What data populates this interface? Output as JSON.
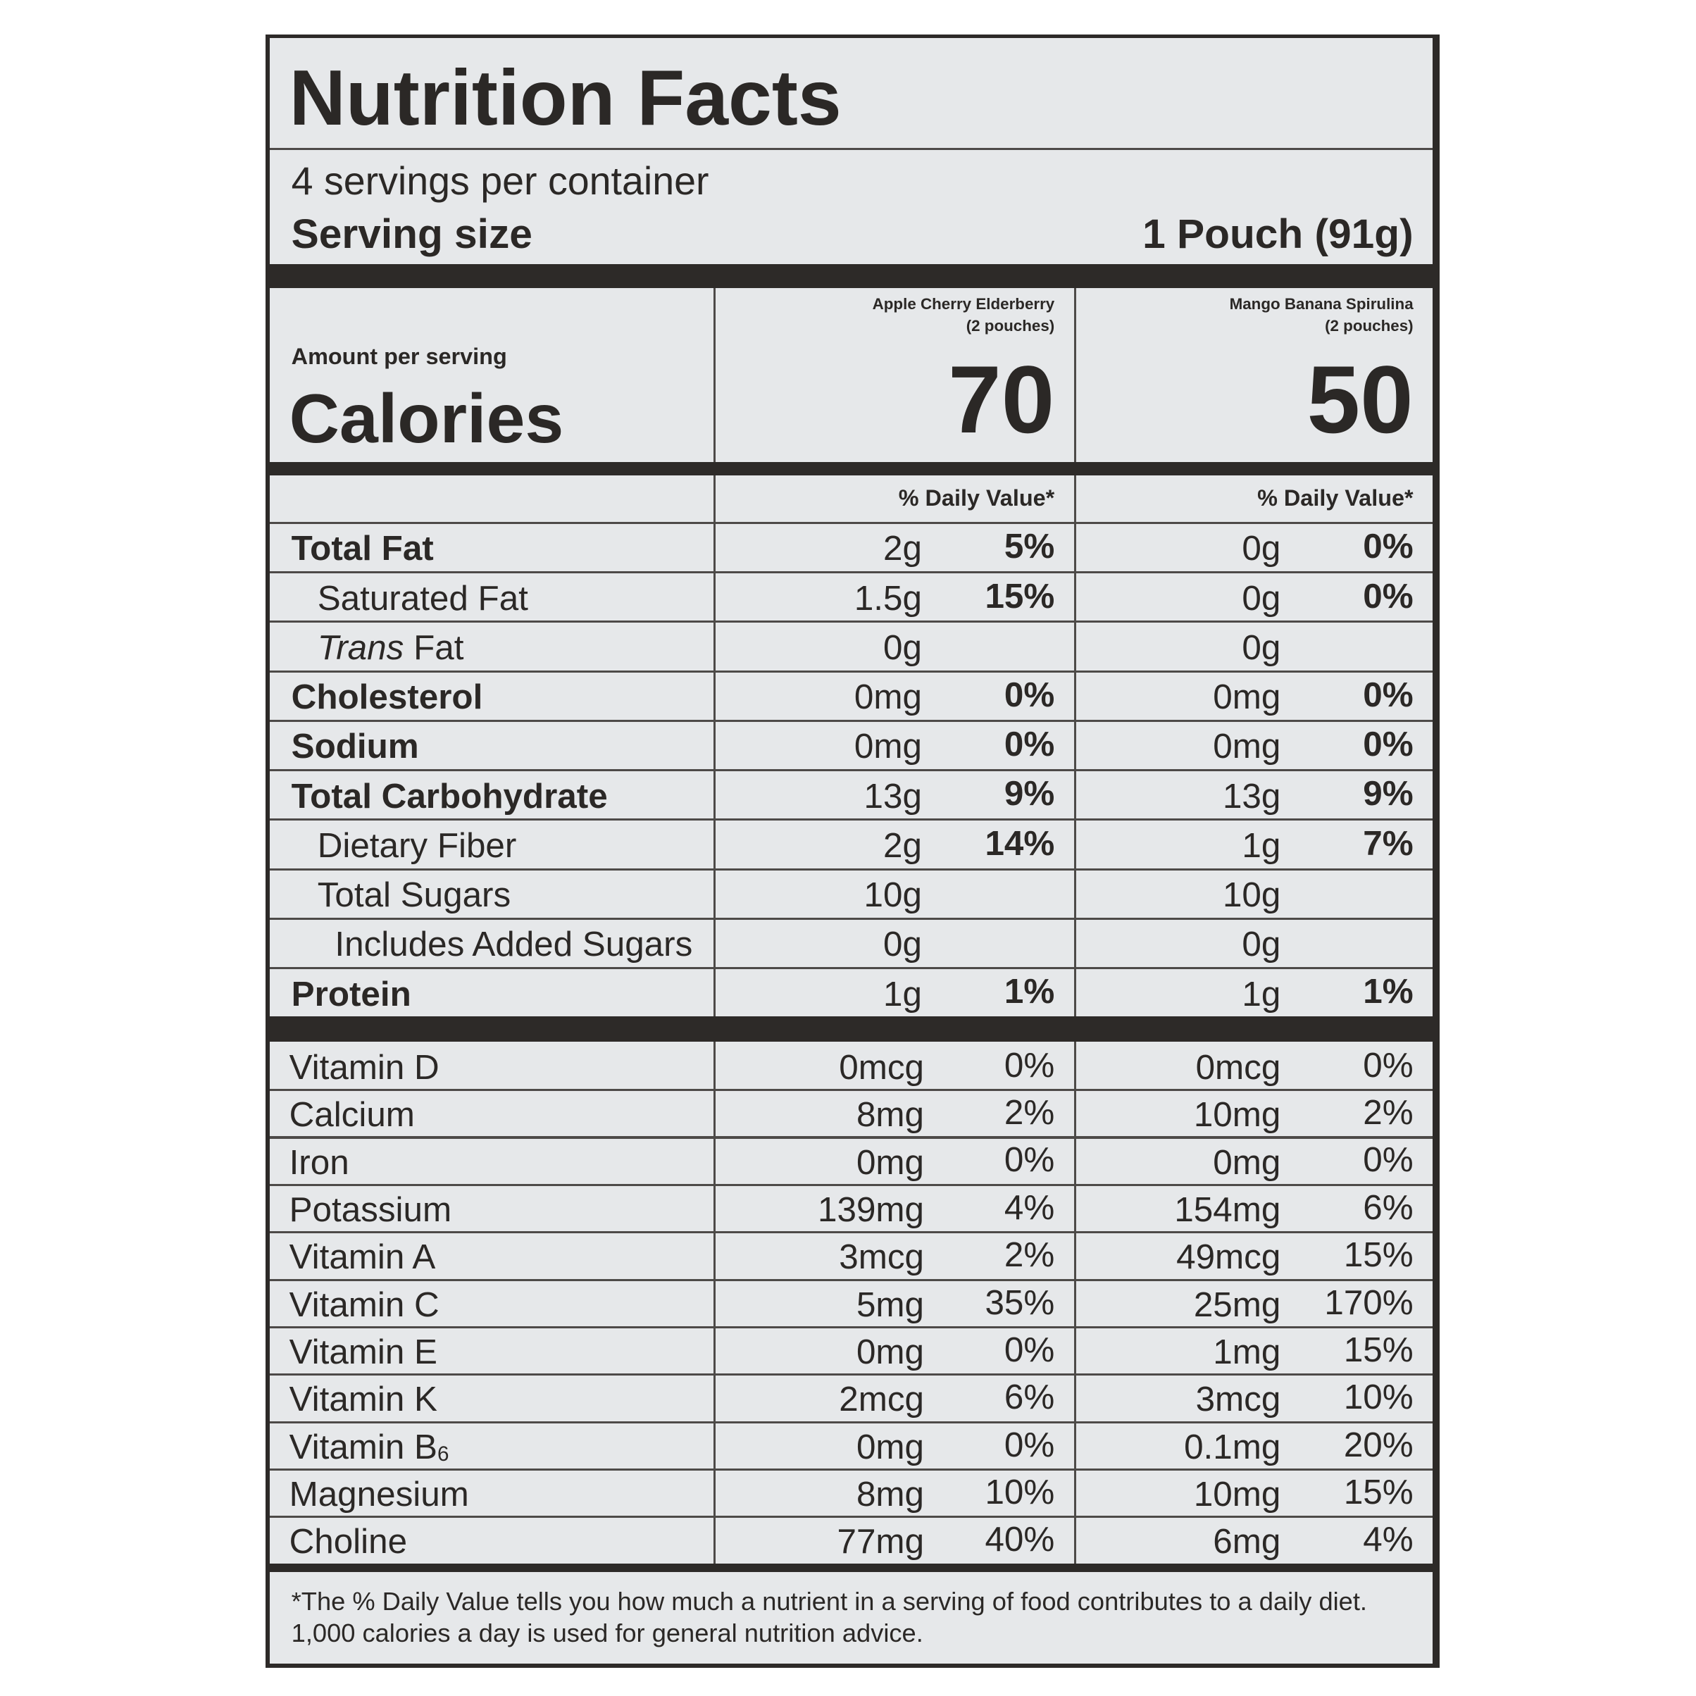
{
  "title": "Nutrition Facts",
  "servings": "4 servings per container",
  "serving_size": {
    "label": "Serving size",
    "value": "1 Pouch (91g)"
  },
  "amount_per_serving": "Amount per serving",
  "calories_label": "Calories",
  "products": [
    {
      "name": "Apple Cherry Elderberry",
      "note": "(2 pouches)",
      "calories": 70
    },
    {
      "name": "Mango Banana Spirulina",
      "note": "(2 pouches)",
      "calories": 50
    }
  ],
  "daily_value_header": "% Daily Value*",
  "nutrients": [
    {
      "name": "Total Fat",
      "bold": true,
      "indent": 0,
      "values": [
        [
          "2g",
          "5%"
        ],
        [
          "0g",
          "0%"
        ]
      ]
    },
    {
      "name": "Saturated Fat",
      "bold": false,
      "indent": 1,
      "values": [
        [
          "1.5g",
          "15%"
        ],
        [
          "0g",
          "0%"
        ]
      ]
    },
    {
      "name_italic": "Trans",
      "name": "Fat",
      "bold": false,
      "indent": 1,
      "values": [
        [
          "0g",
          null
        ],
        [
          "0g",
          null
        ]
      ]
    },
    {
      "name": "Cholesterol",
      "bold": true,
      "indent": 0,
      "values": [
        [
          "0mg",
          "0%"
        ],
        [
          "0mg",
          "0%"
        ]
      ]
    },
    {
      "name": "Sodium",
      "bold": true,
      "indent": 0,
      "values": [
        [
          "0mg",
          "0%"
        ],
        [
          "0mg",
          "0%"
        ]
      ]
    },
    {
      "name": "Total Carbohydrate",
      "bold": true,
      "indent": 0,
      "values": [
        [
          "13g",
          "9%"
        ],
        [
          "13g",
          "9%"
        ]
      ]
    },
    {
      "name": "Dietary Fiber",
      "bold": false,
      "indent": 1,
      "values": [
        [
          "2g",
          "14%"
        ],
        [
          "1g",
          "7%"
        ]
      ]
    },
    {
      "name": "Total Sugars",
      "bold": false,
      "indent": 1,
      "values": [
        [
          "10g",
          null
        ],
        [
          "10g",
          null
        ]
      ]
    },
    {
      "name": "Includes Added Sugars",
      "bold": false,
      "indent": 2,
      "values": [
        [
          "0g",
          null
        ],
        [
          "0g",
          null
        ]
      ]
    },
    {
      "name": "Protein",
      "bold": true,
      "indent": 0,
      "values": [
        [
          "1g",
          "1%"
        ],
        [
          "1g",
          "1%"
        ]
      ]
    }
  ],
  "vitamins": [
    {
      "name": "Vitamin D",
      "values": [
        [
          "0mcg",
          "0%"
        ],
        [
          "0mcg",
          "0%"
        ]
      ]
    },
    {
      "name": "Calcium",
      "values": [
        [
          "8mg",
          "2%"
        ],
        [
          "10mg",
          "2%"
        ]
      ]
    },
    {
      "name": "Iron",
      "values": [
        [
          "0mg",
          "0%"
        ],
        [
          "0mg",
          "0%"
        ]
      ]
    },
    {
      "name": "Potassium",
      "values": [
        [
          "139mg",
          "4%"
        ],
        [
          "154mg",
          "6%"
        ]
      ]
    },
    {
      "name": "Vitamin A",
      "values": [
        [
          "3mcg",
          "2%"
        ],
        [
          "49mcg",
          "15%"
        ]
      ]
    },
    {
      "name": "Vitamin C",
      "values": [
        [
          "5mg",
          "35%"
        ],
        [
          "25mg",
          "170%"
        ]
      ]
    },
    {
      "name": "Vitamin E",
      "values": [
        [
          "0mg",
          "0%"
        ],
        [
          "1mg",
          "15%"
        ]
      ]
    },
    {
      "name": "Vitamin K",
      "values": [
        [
          "2mcg",
          "6%"
        ],
        [
          "3mcg",
          "10%"
        ]
      ]
    },
    {
      "name": "Vitamin B",
      "subscript": "6",
      "values": [
        [
          "0mg",
          "0%"
        ],
        [
          "0.1mg",
          "20%"
        ]
      ]
    },
    {
      "name": "Magnesium",
      "values": [
        [
          "8mg",
          "10%"
        ],
        [
          "10mg",
          "15%"
        ]
      ]
    },
    {
      "name": "Choline",
      "values": [
        [
          "77mg",
          "40%"
        ],
        [
          "6mg",
          "4%"
        ]
      ]
    }
  ],
  "footnote": "*The % Daily Value tells you how much a nutrient in a serving of food contributes to a daily diet. 1,000 calories a day is used for general nutrition advice."
}
